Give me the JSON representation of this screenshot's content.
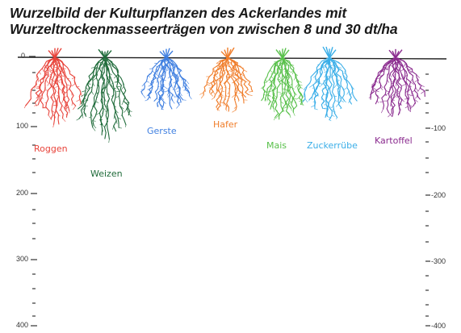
{
  "title": {
    "line1": "Wurzelbild der Kulturpflanzen des Ackerlandes mit",
    "line2": "Wurzeltrockenmasseerträgen von zwischen 8 und 30 dt/ha"
  },
  "depth_axis": {
    "left_labels": [
      "0",
      "100",
      "200",
      "300",
      "400"
    ],
    "right_labels": [
      "-100",
      "-200",
      "-300",
      "-400"
    ]
  },
  "crops": [
    {
      "name": "Roggen",
      "color": "#e8433a",
      "max_depth": 100
    },
    {
      "name": "Weizen",
      "color": "#1f6b3a",
      "max_depth": 125
    },
    {
      "name": "Gerste",
      "color": "#3f7fe0",
      "max_depth": 80
    },
    {
      "name": "Hafer",
      "color": "#f07d2a",
      "max_depth": 80
    },
    {
      "name": "Mais",
      "color": "#58c04a",
      "max_depth": 95
    },
    {
      "name": "Zuckerrübe",
      "color": "#3aaee8",
      "max_depth": 95
    },
    {
      "name": "Kartoffel",
      "color": "#8a2a8e",
      "max_depth": 90
    }
  ]
}
